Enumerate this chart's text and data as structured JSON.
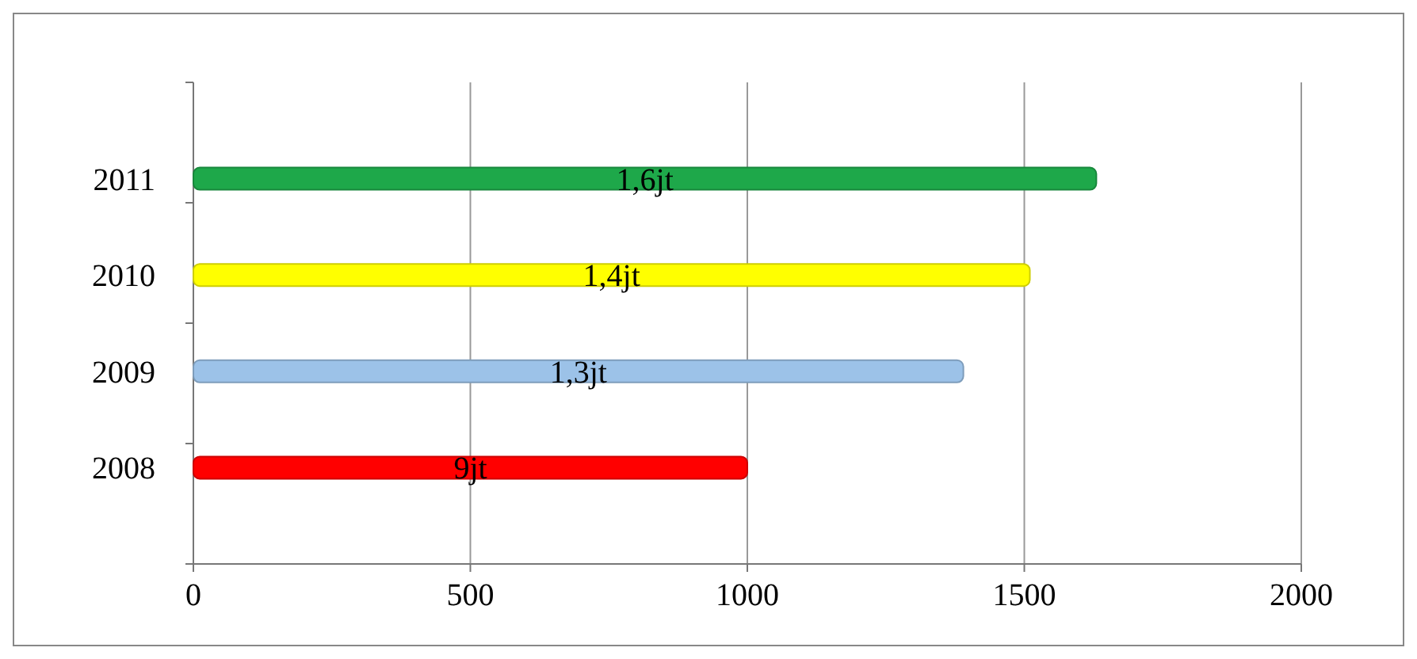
{
  "chart_data": {
    "type": "bar",
    "orientation": "horizontal",
    "categories": [
      "2011",
      "2010",
      "2009",
      "2008"
    ],
    "values": [
      1630,
      1510,
      1390,
      1000
    ],
    "colors": [
      "#1ea84a",
      "#ffff00",
      "#9cc2e8",
      "#ff0000"
    ],
    "annotations": [
      "1,6jt",
      "1,4jt",
      "1,3jt",
      "9jt"
    ],
    "xlim": [
      0,
      2000
    ],
    "xticks": [
      0,
      500,
      1000,
      1500,
      2000
    ],
    "grid": "x"
  }
}
